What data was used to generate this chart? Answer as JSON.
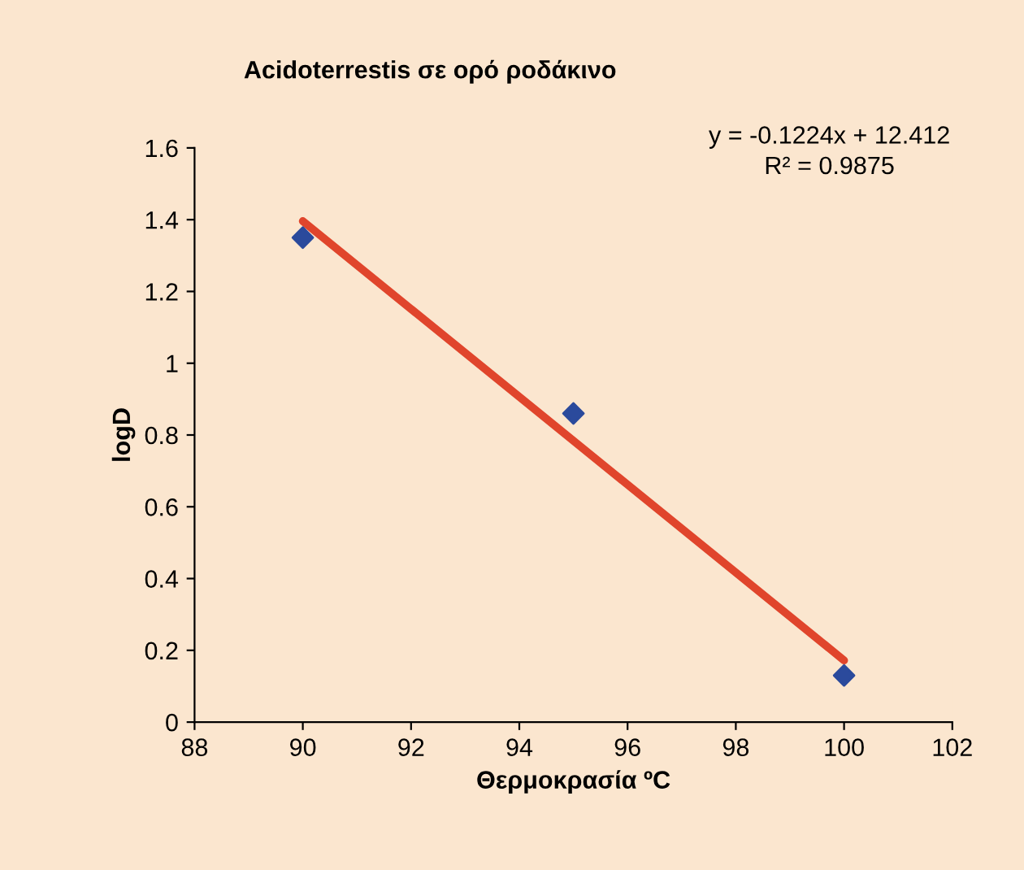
{
  "chart_data": {
    "type": "scatter",
    "title": "Acidoterrestis σε ορό ροδάκινο",
    "xlabel": "Θερμοκρασία ºC",
    "ylabel": "logD",
    "series": [
      {
        "color": "#2b4a9c",
        "marker": "diamond",
        "x": [
          90,
          95,
          100
        ],
        "values": [
          1.35,
          0.86,
          0.13
        ]
      },
      {
        "type": "line",
        "color": "#e0452c",
        "line_style": "solid",
        "x": [
          90,
          100
        ],
        "values": [
          1.396,
          0.172
        ]
      }
    ],
    "annotations": [
      "y = -0.1224x + 12.412",
      "R² = 0.9875"
    ],
    "xlim": [
      88,
      102
    ],
    "xticks": [
      88,
      90,
      92,
      94,
      96,
      98,
      100,
      102
    ],
    "ylim": [
      0,
      1.6
    ],
    "yticks": [
      0,
      0.2,
      0.4,
      0.6,
      0.8,
      1,
      1.2,
      1.4,
      1.6
    ],
    "grid": false,
    "legend": false
  }
}
